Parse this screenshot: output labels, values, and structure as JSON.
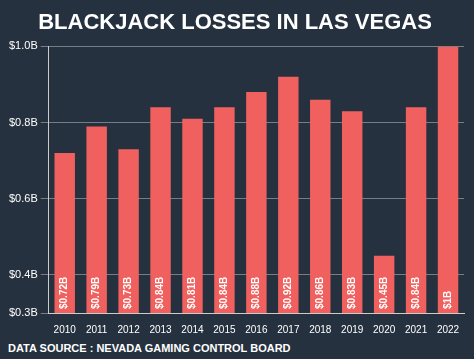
{
  "chart_data": {
    "type": "bar",
    "title": "BLACKJACK LOSSES IN LAS VEGAS",
    "categories": [
      "2010",
      "2011",
      "2012",
      "2013",
      "2014",
      "2015",
      "2016",
      "2017",
      "2018",
      "2019",
      "2020",
      "2021",
      "2022"
    ],
    "values": [
      0.72,
      0.79,
      0.73,
      0.84,
      0.81,
      0.84,
      0.88,
      0.92,
      0.86,
      0.83,
      0.45,
      0.84,
      1.0
    ],
    "value_labels": [
      "$0.72B",
      "$0.79B",
      "$0.73B",
      "$0.84B",
      "$0.81B",
      "$0.84B",
      "$0.88B",
      "$0.92B",
      "$0.86B",
      "$0.83B",
      "$0.45B",
      "$0.84B",
      "$1B"
    ],
    "data_labels": true,
    "color": "#f0605e",
    "ylim": [
      0.3,
      1.0
    ],
    "yticks": [
      {
        "value": 0.3,
        "label": "$0.3B"
      },
      {
        "value": 0.4,
        "label": "$0.4B"
      },
      {
        "value": 0.6,
        "label": "$0.6B"
      },
      {
        "value": 0.8,
        "label": "$0.8B"
      },
      {
        "value": 1.0,
        "label": "$1.0B"
      }
    ],
    "grid": true,
    "annotations": [
      "DATA SOURCE : NEVADA GAMING CONTROL BOARD"
    ]
  }
}
